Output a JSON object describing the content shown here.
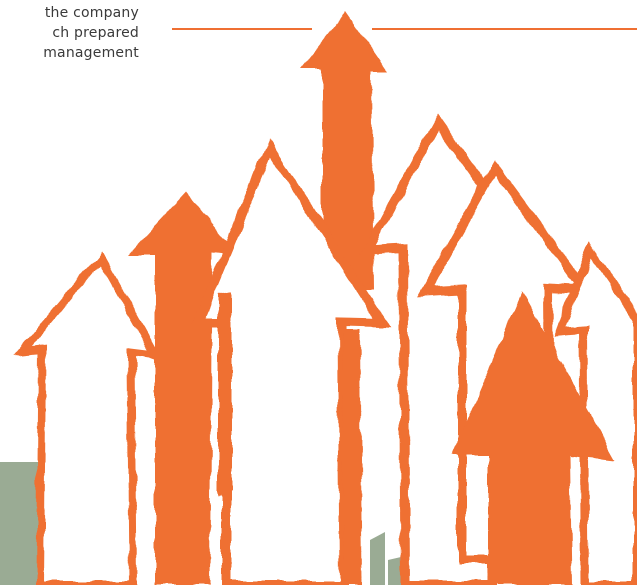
{
  "paragraph": {
    "lines": [
      "the company",
      "ch prepared",
      "management"
    ]
  },
  "colors": {
    "accent": "#ef6f32",
    "ground": "#9aab94",
    "text": "#3a3a3a"
  },
  "illustration": {
    "subject": "rising-arrows-icon"
  }
}
